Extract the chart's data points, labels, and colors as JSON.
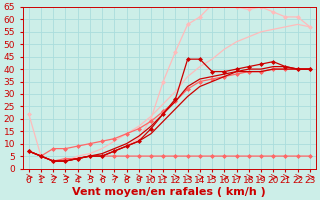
{
  "xlabel": "Vent moyen/en rafales ( km/h )",
  "background_color": "#cceee8",
  "grid_color": "#aadddd",
  "xlim": [
    -0.5,
    23.5
  ],
  "ylim": [
    0,
    65
  ],
  "yticks": [
    0,
    5,
    10,
    15,
    20,
    25,
    30,
    35,
    40,
    45,
    50,
    55,
    60,
    65
  ],
  "xticks": [
    0,
    1,
    2,
    3,
    4,
    5,
    6,
    7,
    8,
    9,
    10,
    11,
    12,
    13,
    14,
    15,
    16,
    17,
    18,
    19,
    20,
    21,
    22,
    23
  ],
  "lines": [
    {
      "x": [
        0,
        1,
        2,
        3,
        4,
        5,
        6,
        7,
        8,
        9,
        10,
        11,
        12,
        13,
        14,
        15,
        16,
        17,
        18,
        19,
        20,
        21,
        22,
        23
      ],
      "y": [
        7,
        5,
        3,
        4,
        4,
        5,
        5,
        5,
        5,
        5,
        5,
        5,
        5,
        5,
        5,
        5,
        5,
        5,
        5,
        5,
        5,
        5,
        5,
        5
      ],
      "color": "#ff6666",
      "marker": "D",
      "markersize": 2.0,
      "linewidth": 0.9,
      "zorder": 3
    },
    {
      "x": [
        0,
        1,
        2,
        3,
        4,
        5,
        6,
        7,
        8,
        9,
        10,
        11,
        12,
        13,
        14,
        15,
        16,
        17,
        18,
        19,
        20,
        21,
        22,
        23
      ],
      "y": [
        7,
        5,
        8,
        8,
        9,
        10,
        11,
        12,
        14,
        16,
        19,
        23,
        27,
        32,
        35,
        36,
        37,
        38,
        39,
        39,
        40,
        40,
        40,
        40
      ],
      "color": "#ff6666",
      "marker": "D",
      "markersize": 2.0,
      "linewidth": 0.9,
      "zorder": 3
    },
    {
      "x": [
        0,
        1,
        2,
        3,
        4,
        5,
        6,
        7,
        8,
        9,
        10,
        11,
        12,
        13,
        14,
        15,
        16,
        17,
        18,
        19,
        20,
        21,
        22,
        23
      ],
      "y": [
        7,
        5,
        3,
        3,
        4,
        5,
        5,
        7,
        9,
        11,
        16,
        22,
        28,
        44,
        44,
        39,
        39,
        40,
        41,
        42,
        43,
        41,
        40,
        40
      ],
      "color": "#cc0000",
      "marker": "D",
      "markersize": 2.0,
      "linewidth": 0.9,
      "zorder": 4
    },
    {
      "x": [
        0,
        1,
        2,
        3,
        4,
        5,
        6,
        7,
        8,
        9,
        10,
        11,
        12,
        13,
        14,
        15,
        16,
        17,
        18,
        19,
        20,
        21,
        22,
        23
      ],
      "y": [
        7,
        5,
        3,
        3,
        4,
        5,
        5,
        7,
        9,
        11,
        14,
        19,
        24,
        29,
        33,
        35,
        37,
        39,
        39,
        39,
        40,
        40,
        40,
        40
      ],
      "color": "#cc0000",
      "marker": null,
      "markersize": 0,
      "linewidth": 0.9,
      "zorder": 3
    },
    {
      "x": [
        0,
        1,
        2,
        3,
        4,
        5,
        6,
        7,
        8,
        9,
        10,
        11,
        12,
        13,
        14,
        15,
        16,
        17,
        18,
        19,
        20,
        21,
        22,
        23
      ],
      "y": [
        7,
        5,
        3,
        3,
        4,
        5,
        6,
        8,
        10,
        13,
        17,
        22,
        27,
        33,
        36,
        37,
        38,
        39,
        40,
        40,
        41,
        41,
        40,
        40
      ],
      "color": "#cc0000",
      "marker": null,
      "markersize": 0,
      "linewidth": 0.9,
      "zorder": 3
    },
    {
      "x": [
        0,
        1,
        2,
        3,
        4,
        5,
        6,
        7,
        8,
        9,
        10,
        11,
        12,
        13,
        14,
        15,
        16,
        17,
        18,
        19,
        20,
        21,
        22,
        23
      ],
      "y": [
        22,
        5,
        3,
        3,
        4,
        5,
        5,
        7,
        9,
        12,
        20,
        35,
        47,
        58,
        61,
        66,
        66,
        65,
        64,
        65,
        63,
        61,
        61,
        57
      ],
      "color": "#ffbbbb",
      "marker": "D",
      "markersize": 2.0,
      "linewidth": 0.9,
      "zorder": 2
    },
    {
      "x": [
        0,
        1,
        2,
        3,
        4,
        5,
        6,
        7,
        8,
        9,
        10,
        11,
        12,
        13,
        14,
        15,
        16,
        17,
        18,
        19,
        20,
        21,
        22,
        23
      ],
      "y": [
        7,
        5,
        3,
        3,
        5,
        6,
        8,
        11,
        14,
        17,
        21,
        26,
        31,
        37,
        41,
        44,
        48,
        51,
        53,
        55,
        56,
        57,
        58,
        57
      ],
      "color": "#ffbbbb",
      "marker": null,
      "markersize": 0,
      "linewidth": 0.9,
      "zorder": 2
    }
  ],
  "xlabel_fontsize": 8,
  "tick_fontsize": 6.5
}
